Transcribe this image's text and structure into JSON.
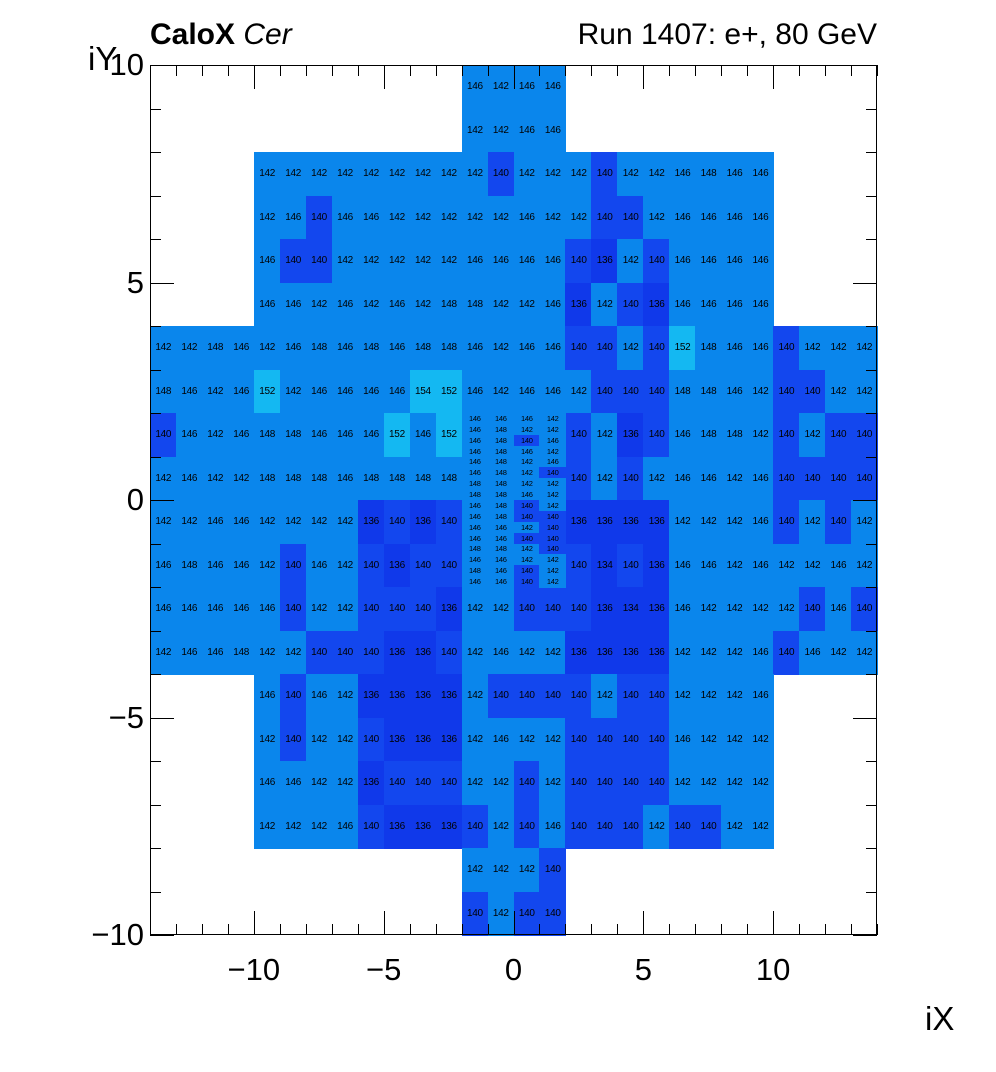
{
  "header": {
    "experiment": "CaloX",
    "detector": "Cer",
    "run_info": "Run 1407: e+, 80 GeV"
  },
  "chart_data": {
    "type": "heatmap",
    "title": "CaloX Cer — Run 1407: e+, 80 GeV",
    "xlabel": "iX",
    "ylabel": "iY",
    "xlim": [
      -14,
      14
    ],
    "ylim": [
      -10,
      10
    ],
    "grid": false,
    "legend": "none",
    "x_ticks": [
      {
        "v": -10,
        "label": "−10"
      },
      {
        "v": -5,
        "label": "−5"
      },
      {
        "v": 0,
        "label": "0"
      },
      {
        "v": 5,
        "label": "5"
      },
      {
        "v": 10,
        "label": "10"
      }
    ],
    "y_ticks": [
      {
        "v": 10,
        "label": "10"
      },
      {
        "v": 5,
        "label": "5"
      },
      {
        "v": 0,
        "label": "0"
      },
      {
        "v": -5,
        "label": "−5"
      },
      {
        "v": -10,
        "label": "−10"
      }
    ],
    "palette": {
      "cyan_high": "#14b8f2",
      "azure_mid": "#0a86ec",
      "royal_low": "#1347ee",
      "royal_lowest": "#1039ea",
      "thresholds": {
        "high_min": 150,
        "mid_min": 142,
        "low_min": 138
      }
    },
    "rows": [
      {
        "iy": 9,
        "x0": -2,
        "values": [
          146,
          142,
          146,
          146
        ]
      },
      {
        "iy": 8,
        "x0": -2,
        "values": [
          142,
          142,
          146,
          146
        ]
      },
      {
        "iy": 7,
        "x0": -10,
        "values": [
          142,
          142,
          142,
          142,
          142,
          142,
          142,
          142,
          142,
          140,
          142,
          142,
          142,
          140,
          142,
          142,
          146,
          148,
          146,
          146
        ]
      },
      {
        "iy": 6,
        "x0": -10,
        "values": [
          142,
          146,
          140,
          146,
          146,
          142,
          142,
          142,
          142,
          142,
          146,
          142,
          142,
          140,
          140,
          142,
          146,
          146,
          146,
          146
        ]
      },
      {
        "iy": 5,
        "x0": -10,
        "values": [
          146,
          140,
          140,
          142,
          142,
          142,
          142,
          142,
          146,
          146,
          146,
          146,
          140,
          136,
          142,
          140,
          146,
          146,
          146,
          146
        ]
      },
      {
        "iy": 4,
        "x0": -10,
        "values": [
          146,
          146,
          142,
          146,
          142,
          146,
          142,
          148,
          148,
          142,
          142,
          146,
          136,
          142,
          140,
          136,
          146,
          146,
          146,
          146
        ]
      },
      {
        "iy": 3,
        "x0": -14,
        "values": [
          142,
          142,
          148,
          146,
          142,
          146,
          148,
          146,
          148,
          146,
          148,
          148,
          146,
          142,
          146,
          146,
          140,
          140,
          142,
          140,
          152,
          148,
          146,
          146,
          140,
          142,
          142,
          142
        ]
      },
      {
        "iy": 2,
        "x0": -14,
        "values": [
          148,
          146,
          142,
          146,
          152,
          142,
          146,
          146,
          146,
          146,
          154,
          152,
          146,
          142,
          146,
          146,
          142,
          140,
          140,
          140,
          148,
          148,
          146,
          142,
          140,
          140,
          142,
          142
        ]
      },
      {
        "iy": 1,
        "x0": -14,
        "values": [
          140,
          146,
          142,
          146,
          148,
          148,
          146,
          146,
          146,
          152,
          146,
          152,
          null,
          null,
          null,
          null,
          140,
          142,
          136,
          140,
          146,
          148,
          148,
          142,
          140,
          142,
          140,
          140
        ]
      },
      {
        "iy": 0,
        "x0": -14,
        "values": [
          142,
          146,
          142,
          142,
          148,
          148,
          148,
          146,
          148,
          148,
          148,
          148,
          null,
          null,
          null,
          null,
          140,
          142,
          140,
          142,
          146,
          146,
          142,
          146,
          140,
          140,
          140,
          140
        ]
      },
      {
        "iy": -1,
        "x0": -14,
        "values": [
          142,
          142,
          146,
          146,
          142,
          142,
          142,
          142,
          136,
          140,
          136,
          140,
          null,
          null,
          null,
          null,
          136,
          136,
          136,
          136,
          142,
          142,
          142,
          146,
          140,
          142,
          140,
          142
        ]
      },
      {
        "iy": -2,
        "x0": -14,
        "values": [
          146,
          148,
          146,
          146,
          142,
          140,
          146,
          142,
          140,
          136,
          140,
          140,
          null,
          null,
          null,
          null,
          140,
          134,
          140,
          136,
          146,
          146,
          142,
          146,
          142,
          142,
          146,
          142
        ]
      },
      {
        "iy": -3,
        "x0": -14,
        "values": [
          146,
          146,
          146,
          146,
          146,
          140,
          142,
          142,
          140,
          140,
          140,
          136,
          142,
          142,
          140,
          140,
          140,
          136,
          134,
          136,
          146,
          142,
          142,
          142,
          142,
          140,
          146,
          140
        ]
      },
      {
        "iy": -4,
        "x0": -14,
        "values": [
          142,
          146,
          146,
          148,
          142,
          142,
          140,
          140,
          140,
          136,
          136,
          140,
          142,
          146,
          142,
          142,
          136,
          136,
          136,
          136,
          142,
          142,
          142,
          146,
          140,
          146,
          142,
          142
        ]
      },
      {
        "iy": -5,
        "x0": -10,
        "values": [
          146,
          140,
          146,
          142,
          136,
          136,
          136,
          136,
          142,
          140,
          140,
          140,
          140,
          142,
          140,
          140,
          142,
          142,
          142,
          146
        ]
      },
      {
        "iy": -6,
        "x0": -10,
        "values": [
          142,
          140,
          142,
          142,
          140,
          136,
          136,
          136,
          142,
          146,
          142,
          142,
          140,
          140,
          140,
          140,
          146,
          142,
          142,
          142
        ]
      },
      {
        "iy": -7,
        "x0": -10,
        "values": [
          146,
          146,
          142,
          142,
          136,
          140,
          140,
          140,
          142,
          142,
          140,
          142,
          140,
          140,
          140,
          140,
          142,
          142,
          142,
          142
        ]
      },
      {
        "iy": -8,
        "x0": -10,
        "values": [
          142,
          142,
          142,
          146,
          140,
          136,
          136,
          136,
          140,
          142,
          140,
          146,
          140,
          140,
          140,
          142,
          140,
          140,
          142,
          142
        ]
      },
      {
        "iy": -9,
        "x0": -2,
        "values": [
          142,
          142,
          142,
          140
        ]
      },
      {
        "iy": -10,
        "x0": -2,
        "values": [
          140,
          142,
          140,
          140
        ]
      }
    ],
    "fine_region": {
      "x0": -2,
      "cols": 4,
      "iy_top": 2,
      "row_height_units": 0.25,
      "rows": [
        [
          146,
          146,
          146,
          142
        ],
        [
          146,
          148,
          142,
          142
        ],
        [
          146,
          148,
          140,
          146
        ],
        [
          146,
          148,
          146,
          142
        ],
        [
          146,
          148,
          142,
          146
        ],
        [
          146,
          148,
          142,
          140
        ],
        [
          148,
          148,
          142,
          142
        ],
        [
          148,
          148,
          146,
          142
        ],
        [
          146,
          148,
          140,
          142
        ],
        [
          146,
          148,
          140,
          140
        ],
        [
          146,
          146,
          142,
          140
        ],
        [
          146,
          146,
          140,
          140
        ],
        [
          148,
          148,
          142,
          140
        ],
        [
          146,
          146,
          142,
          142
        ],
        [
          148,
          146,
          140,
          142
        ],
        [
          146,
          146,
          140,
          142
        ]
      ]
    }
  }
}
